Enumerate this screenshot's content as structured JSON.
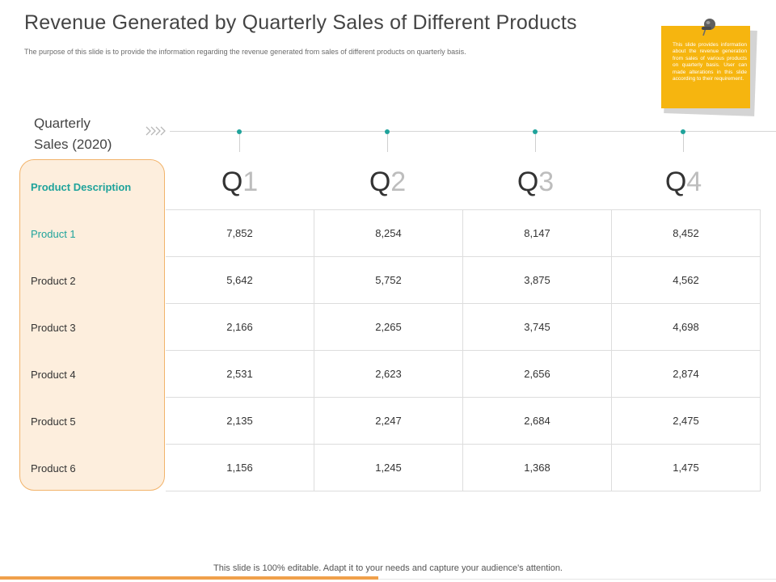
{
  "title": "Revenue Generated by Quarterly Sales of Different Products",
  "subtitle": "The purpose of this slide is to provide the information regarding the revenue generated from sales of different products on quarterly basis.",
  "note": {
    "text": "This slide provides information about the revenue generation from sales of various products on quarterly basis. User can made alterations in this slide according to their requirement.",
    "color": "#f6b50f",
    "icon": "pushpin-icon"
  },
  "timeline": {
    "label_line1": "Quarterly",
    "label_line2": "Sales (2020)",
    "icon": "chevrons-right-icon"
  },
  "table": {
    "header": "Product Description",
    "quarters": [
      {
        "letter": "Q",
        "num": "1"
      },
      {
        "letter": "Q",
        "num": "2"
      },
      {
        "letter": "Q",
        "num": "3"
      },
      {
        "letter": "Q",
        "num": "4"
      }
    ],
    "rows": [
      {
        "product": "Product 1",
        "values": [
          "7,852",
          "8,254",
          "8,147",
          "8,452"
        ]
      },
      {
        "product": "Product 2",
        "values": [
          "5,642",
          "5,752",
          "3,875",
          "4,562"
        ]
      },
      {
        "product": "Product 3",
        "values": [
          "2,166",
          "2,265",
          "3,745",
          "4,698"
        ]
      },
      {
        "product": "Product 4",
        "values": [
          "2,531",
          "2,623",
          "2,656",
          "2,874"
        ]
      },
      {
        "product": "Product 5",
        "values": [
          "2,135",
          "2,247",
          "2,684",
          "2,475"
        ]
      },
      {
        "product": "Product 6",
        "values": [
          "1,156",
          "1,245",
          "1,368",
          "1,475"
        ]
      }
    ]
  },
  "footer": {
    "text": "This slide is 100% editable. Adapt it to your needs and capture your audience's attention."
  },
  "colors": {
    "accent_teal": "#1fa39b",
    "accent_orange": "#f0a04b",
    "panel_fill": "#fdeedd"
  }
}
